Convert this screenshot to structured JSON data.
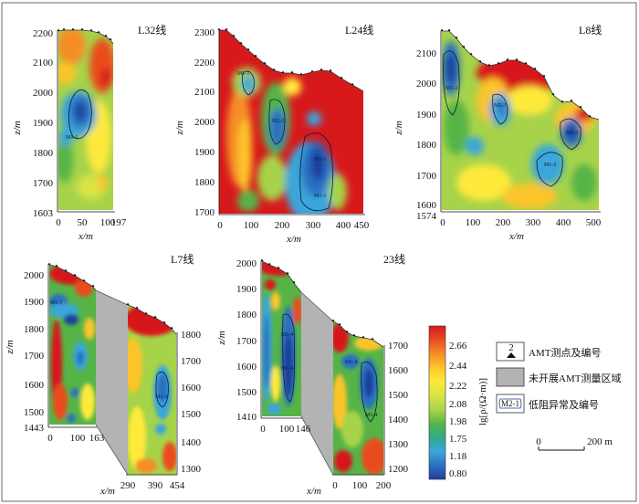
{
  "panels": {
    "l32": {
      "title": "L32线",
      "y_label": "z/m",
      "x_label": "x/m",
      "y_ticks": [
        "2200",
        "2100",
        "2000",
        "1900",
        "1800",
        "1700",
        "1603"
      ],
      "x_ticks": [
        "0",
        "50",
        "100",
        "197"
      ],
      "anomalies": [
        "M1-1"
      ]
    },
    "l24": {
      "title": "L24线",
      "y_label": "z/m",
      "x_label": "x/m",
      "y_ticks": [
        "2300",
        "2200",
        "2100",
        "2000",
        "1900",
        "1800",
        "1700"
      ],
      "x_ticks": [
        "0",
        "100",
        "200",
        "300",
        "400",
        "450"
      ],
      "anomalies": [
        "M1-1",
        "M2-2",
        "M1-1",
        "M1-1"
      ]
    },
    "l8": {
      "title": "L8线",
      "y_label": "z/m",
      "x_label": "x/m",
      "y_ticks": [
        "2100",
        "2000",
        "1900",
        "1800",
        "1700",
        "1600",
        "1574"
      ],
      "x_ticks": [
        "0",
        "100",
        "200",
        "300",
        "400",
        "500"
      ],
      "anomalies": [
        "M1-2",
        "M2-3",
        "M1-2",
        "M1-2"
      ]
    },
    "l7": {
      "title": "L7线",
      "y_label": "z/m",
      "x_label": "x/m",
      "y_ticks_left": [
        "2000",
        "1900",
        "1800",
        "1700",
        "1600",
        "1500",
        "1443"
      ],
      "y_ticks_right": [
        "1800",
        "1700",
        "1600",
        "1500",
        "1400",
        "1300"
      ],
      "x_ticks_left": [
        "0",
        "100",
        "163"
      ],
      "x_ticks_right": [
        "290",
        "390",
        "454"
      ],
      "anomalies": [
        "M1-1",
        "M1-3"
      ]
    },
    "line23": {
      "title": "23线",
      "y_label": "z/m",
      "x_label": "x/m",
      "y_ticks_left": [
        "2000",
        "1900",
        "1800",
        "1700",
        "1600",
        "1500",
        "1410"
      ],
      "y_ticks_right": [
        "1700",
        "1600",
        "1500",
        "1400",
        "1300",
        "1200"
      ],
      "x_ticks_left": [
        "0",
        "100",
        "146"
      ],
      "x_ticks_right": [
        "0",
        "100",
        "200"
      ],
      "anomalies": [
        "M1-4",
        "M1-4",
        "M1-4",
        "M1-4"
      ]
    }
  },
  "colorbar": {
    "label": "lg[ρ/(Ω·m)]",
    "ticks": [
      "2.66",
      "2.44",
      "2.22",
      "2.08",
      "1.98",
      "1.75",
      "1.18",
      "0.80"
    ],
    "colors": [
      "#d7191c",
      "#ea4b1f",
      "#f58d26",
      "#fdc42b",
      "#ffe93b",
      "#d8e445",
      "#a6d34a",
      "#56b447",
      "#2faa8f",
      "#3aa6d9",
      "#2c6fc2",
      "#1f3f9c"
    ]
  },
  "legend": {
    "amt_symbol_num": "2",
    "amt_label": "AMT测点及编号",
    "gray_label": "未开展AMT测量区域",
    "anomaly_symbol": "M2-1",
    "anomaly_label": "低阻异常及编号"
  },
  "scale_bar": {
    "start": "0",
    "end": "200 m"
  }
}
